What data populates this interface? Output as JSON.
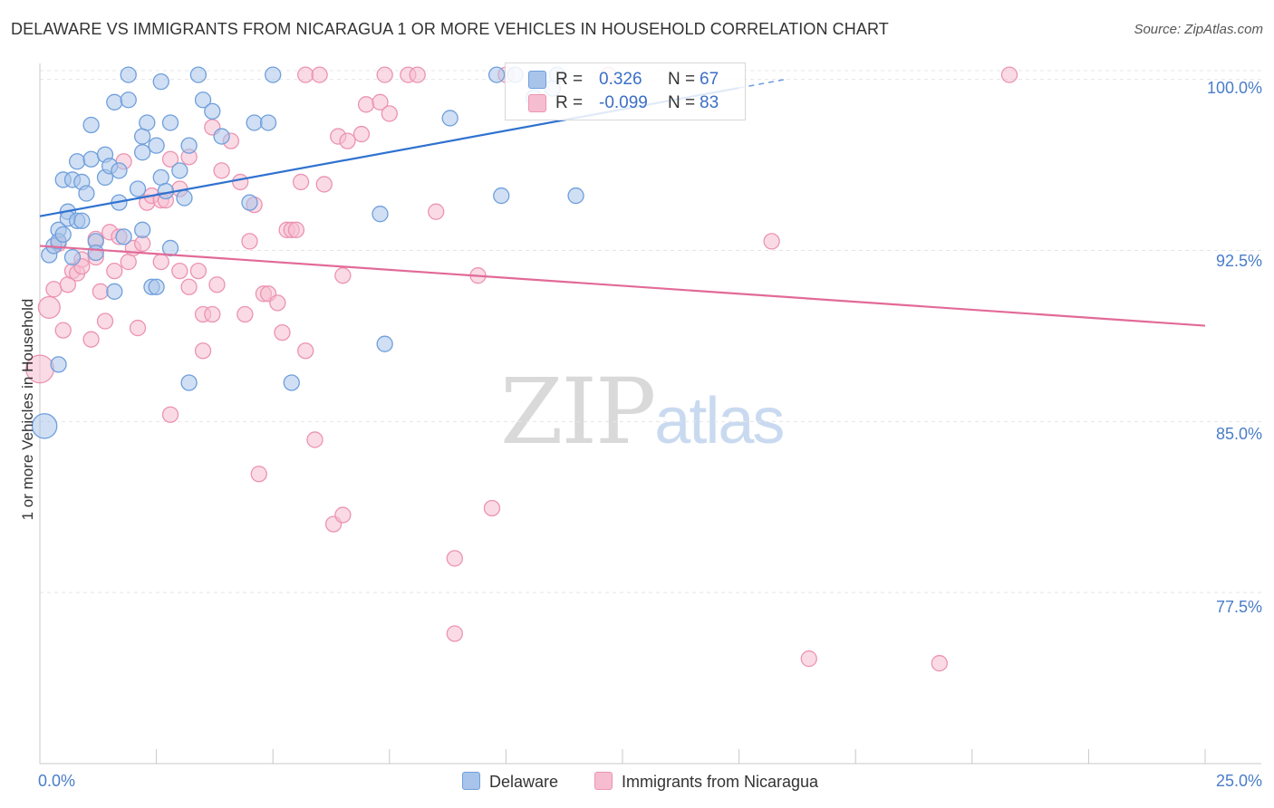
{
  "title": "DELAWARE VS IMMIGRANTS FROM NICARAGUA 1 OR MORE VEHICLES IN HOUSEHOLD CORRELATION CHART",
  "source": "Source: ZipAtlas.com",
  "watermark": {
    "zip": "ZIP",
    "atlas": "atlas"
  },
  "colors": {
    "blue_fill": "#a9c4ea",
    "blue_stroke": "#6f9fdc",
    "blue_line": "#2f72d0",
    "pink_fill": "#f6bdd0",
    "pink_stroke": "#ec93b2",
    "pink_line": "#e26a97",
    "tick_text": "#4a7dc9",
    "grid": "#e5e5e5"
  },
  "legend": {
    "rows": [
      {
        "r_label": "R =",
        "r_value": "0.326",
        "n_label": "N =",
        "n_value": "67"
      },
      {
        "r_label": "R =",
        "r_value": "-0.099",
        "n_label": "N =",
        "n_value": "83"
      }
    ]
  },
  "chart_data": {
    "type": "scatter",
    "title": "DELAWARE VS IMMIGRANTS FROM NICARAGUA 1 OR MORE VEHICLES IN HOUSEHOLD CORRELATION CHART",
    "xlabel": "",
    "ylabel": "1 or more Vehicles in Household",
    "xlim": [
      0,
      25
    ],
    "ylim": [
      70.0,
      100.7
    ],
    "x_tick_labels": [
      "0.0%",
      "25.0%"
    ],
    "y_ticks": [
      100.0,
      92.5,
      85.0,
      77.5
    ],
    "y_tick_labels": [
      "100.0%",
      "92.5%",
      "85.0%",
      "77.5%"
    ],
    "grid": true,
    "legend_position": "bottom",
    "series": [
      {
        "name": "Delaware",
        "color": "#a9c4ea",
        "r": 0.326,
        "n": 67,
        "trend": {
          "x0": 0.0,
          "y0": 94.0,
          "x1": 16.0,
          "y1": 100.0,
          "solid_until": 15.0
        },
        "points": [
          [
            0.1,
            84.8,
            1.6
          ],
          [
            0.2,
            92.3,
            1.0
          ],
          [
            0.3,
            92.7,
            1.0
          ],
          [
            0.4,
            87.5,
            1.0
          ],
          [
            0.4,
            93.4,
            1.0
          ],
          [
            0.4,
            92.9,
            1.0
          ],
          [
            0.5,
            93.2,
            1.0
          ],
          [
            0.5,
            95.6,
            1.0
          ],
          [
            0.6,
            94.2,
            1.0
          ],
          [
            0.6,
            93.9,
            1.0
          ],
          [
            0.7,
            95.6,
            1.0
          ],
          [
            0.7,
            92.2,
            1.0
          ],
          [
            0.8,
            96.4,
            1.0
          ],
          [
            0.8,
            93.8,
            1.0
          ],
          [
            0.9,
            95.5,
            1.0
          ],
          [
            0.9,
            93.8,
            1.0
          ],
          [
            1.0,
            95.0,
            1.0
          ],
          [
            1.1,
            98.0,
            1.0
          ],
          [
            1.1,
            96.5,
            1.0
          ],
          [
            1.2,
            92.9,
            1.0
          ],
          [
            1.2,
            92.4,
            1.0
          ],
          [
            1.4,
            96.7,
            1.0
          ],
          [
            1.4,
            95.7,
            1.0
          ],
          [
            1.5,
            96.2,
            1.0
          ],
          [
            1.6,
            99.0,
            1.0
          ],
          [
            1.6,
            90.7,
            1.0
          ],
          [
            1.7,
            94.6,
            1.0
          ],
          [
            1.7,
            96.0,
            1.0
          ],
          [
            1.8,
            93.1,
            1.0
          ],
          [
            1.9,
            100.2,
            1.0
          ],
          [
            1.9,
            99.1,
            1.0
          ],
          [
            2.1,
            95.2,
            1.0
          ],
          [
            2.2,
            93.4,
            1.0
          ],
          [
            2.2,
            96.8,
            1.0
          ],
          [
            2.2,
            97.5,
            1.0
          ],
          [
            2.3,
            98.1,
            1.0
          ],
          [
            2.4,
            90.9,
            1.0
          ],
          [
            2.5,
            90.9,
            1.0
          ],
          [
            2.5,
            97.1,
            1.0
          ],
          [
            2.6,
            99.9,
            1.0
          ],
          [
            2.6,
            95.7,
            1.0
          ],
          [
            2.7,
            95.1,
            1.0
          ],
          [
            2.8,
            98.1,
            1.0
          ],
          [
            2.8,
            92.6,
            1.0
          ],
          [
            3.0,
            96.0,
            1.0
          ],
          [
            3.1,
            94.8,
            1.0
          ],
          [
            3.2,
            86.7,
            1.0
          ],
          [
            3.2,
            97.1,
            1.0
          ],
          [
            3.4,
            100.2,
            1.0
          ],
          [
            3.5,
            99.1,
            1.0
          ],
          [
            3.7,
            98.6,
            1.0
          ],
          [
            3.9,
            97.5,
            1.0
          ],
          [
            4.5,
            94.6,
            1.0
          ],
          [
            4.6,
            98.1,
            1.0
          ],
          [
            4.9,
            98.1,
            1.0
          ],
          [
            5.0,
            100.2,
            1.0
          ],
          [
            5.4,
            86.7,
            1.0
          ],
          [
            7.3,
            94.1,
            1.0
          ],
          [
            7.4,
            88.4,
            1.0
          ],
          [
            8.8,
            98.3,
            1.0
          ],
          [
            9.8,
            100.2,
            1.0
          ],
          [
            9.9,
            94.9,
            1.0
          ],
          [
            10.2,
            100.2,
            1.0
          ],
          [
            11.1,
            100.2,
            1.0
          ],
          [
            11.5,
            94.9,
            1.0
          ],
          [
            11.0,
            99.6,
            1.0
          ],
          [
            10.6,
            99.2,
            1.0
          ]
        ]
      },
      {
        "name": "Immigrants from Nicaragua",
        "color": "#f6bdd0",
        "r": -0.099,
        "n": 83,
        "trend": {
          "x0": 0.0,
          "y0": 92.7,
          "x1": 25.0,
          "y1": 89.2
        },
        "points": [
          [
            0.0,
            87.3,
            1.8
          ],
          [
            0.2,
            90.0,
            1.4
          ],
          [
            0.3,
            90.8,
            1.0
          ],
          [
            0.4,
            92.8,
            1.0
          ],
          [
            0.5,
            89.0,
            1.0
          ],
          [
            0.6,
            91.0,
            1.0
          ],
          [
            0.7,
            91.6,
            1.0
          ],
          [
            0.8,
            91.5,
            1.0
          ],
          [
            0.9,
            92.1,
            1.0
          ],
          [
            0.9,
            91.8,
            1.0
          ],
          [
            1.1,
            88.6,
            1.0
          ],
          [
            1.2,
            92.2,
            1.0
          ],
          [
            1.2,
            93.0,
            1.0
          ],
          [
            1.3,
            90.7,
            1.0
          ],
          [
            1.4,
            89.4,
            1.0
          ],
          [
            1.5,
            93.3,
            1.0
          ],
          [
            1.6,
            91.6,
            1.0
          ],
          [
            1.7,
            93.1,
            1.0
          ],
          [
            1.8,
            96.4,
            1.0
          ],
          [
            1.9,
            92.0,
            1.0
          ],
          [
            2.0,
            92.6,
            1.0
          ],
          [
            2.1,
            89.1,
            1.0
          ],
          [
            2.2,
            92.8,
            1.0
          ],
          [
            2.3,
            94.6,
            1.0
          ],
          [
            2.4,
            94.9,
            1.0
          ],
          [
            2.6,
            94.7,
            1.0
          ],
          [
            2.6,
            92.0,
            1.0
          ],
          [
            2.7,
            94.7,
            1.0
          ],
          [
            2.8,
            96.5,
            1.0
          ],
          [
            2.8,
            85.3,
            1.0
          ],
          [
            3.0,
            95.2,
            1.0
          ],
          [
            3.0,
            91.6,
            1.0
          ],
          [
            3.2,
            90.9,
            1.0
          ],
          [
            3.2,
            96.6,
            1.0
          ],
          [
            3.4,
            91.6,
            1.0
          ],
          [
            3.5,
            88.1,
            1.0
          ],
          [
            3.5,
            89.7,
            1.0
          ],
          [
            3.7,
            89.7,
            1.0
          ],
          [
            3.7,
            97.9,
            1.0
          ],
          [
            3.8,
            91.0,
            1.0
          ],
          [
            3.9,
            96.0,
            1.0
          ],
          [
            4.1,
            97.3,
            1.0
          ],
          [
            4.3,
            95.5,
            1.0
          ],
          [
            4.4,
            89.7,
            1.0
          ],
          [
            4.5,
            92.9,
            1.0
          ],
          [
            4.6,
            94.5,
            1.0
          ],
          [
            4.7,
            82.7,
            1.0
          ],
          [
            4.8,
            90.6,
            1.0
          ],
          [
            4.9,
            90.6,
            1.0
          ],
          [
            5.1,
            90.2,
            1.0
          ],
          [
            5.2,
            88.9,
            1.0
          ],
          [
            5.3,
            93.4,
            1.0
          ],
          [
            5.4,
            93.4,
            1.0
          ],
          [
            5.5,
            93.4,
            1.0
          ],
          [
            5.6,
            95.5,
            1.0
          ],
          [
            5.7,
            88.1,
            1.0
          ],
          [
            5.7,
            100.2,
            1.0
          ],
          [
            5.9,
            84.2,
            1.0
          ],
          [
            6.0,
            100.2,
            1.0
          ],
          [
            6.1,
            95.4,
            1.0
          ],
          [
            6.3,
            80.5,
            1.0
          ],
          [
            6.4,
            97.5,
            1.0
          ],
          [
            6.5,
            91.4,
            1.0
          ],
          [
            6.5,
            80.9,
            1.0
          ],
          [
            6.6,
            97.3,
            1.0
          ],
          [
            6.9,
            97.6,
            1.0
          ],
          [
            7.0,
            98.9,
            1.0
          ],
          [
            7.3,
            99.0,
            1.0
          ],
          [
            7.4,
            100.2,
            1.0
          ],
          [
            7.5,
            98.5,
            1.0
          ],
          [
            7.9,
            100.2,
            1.0
          ],
          [
            8.1,
            100.2,
            1.0
          ],
          [
            8.5,
            94.2,
            1.0
          ],
          [
            8.9,
            79.0,
            1.0
          ],
          [
            8.9,
            75.7,
            1.0
          ],
          [
            9.4,
            91.4,
            1.0
          ],
          [
            9.7,
            81.2,
            1.0
          ],
          [
            10.0,
            100.2,
            1.0
          ],
          [
            12.2,
            100.2,
            1.0
          ],
          [
            15.7,
            92.9,
            1.0
          ],
          [
            16.5,
            74.6,
            1.0
          ],
          [
            19.3,
            74.4,
            1.0
          ],
          [
            20.8,
            100.2,
            1.0
          ]
        ]
      }
    ]
  },
  "bottom_legend": {
    "delaware": "Delaware",
    "nicaragua": "Immigrants from Nicaragua"
  }
}
